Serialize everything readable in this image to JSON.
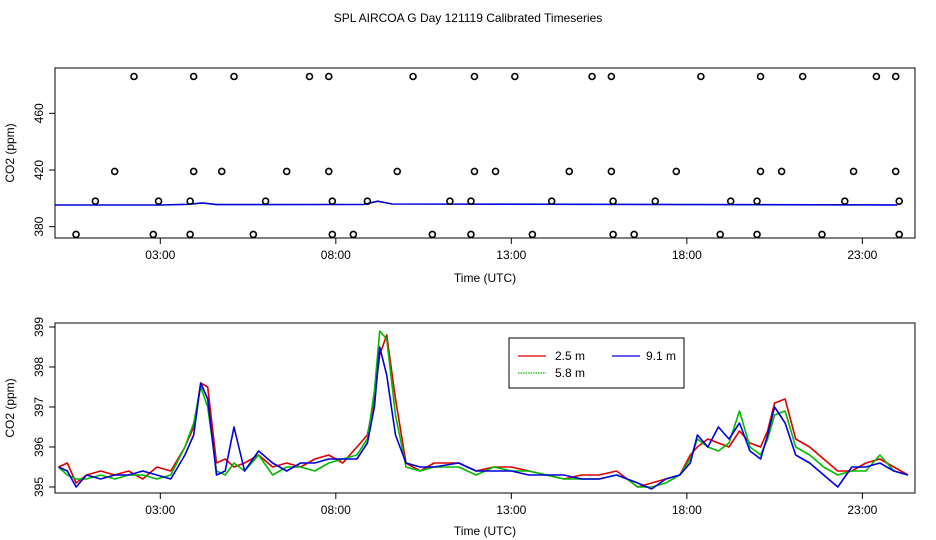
{
  "title": "SPL AIRCOA G  Day 121119  Calibrated Timeseries",
  "colors": {
    "s25": "#dd0000",
    "s58": "#00bb00",
    "s91": "#0000dd",
    "flag": "#000000"
  },
  "chart_data": [
    {
      "type": "line",
      "panel": "top",
      "xlabel": "Time (UTC)",
      "ylabel": "CO2 (ppm)",
      "xlim": [
        0,
        24.5
      ],
      "ylim": [
        372,
        492
      ],
      "x_ticks": [
        3,
        8,
        13,
        18,
        23
      ],
      "x_tick_labels": [
        "03:00",
        "08:00",
        "13:00",
        "18:00",
        "23:00"
      ],
      "y_ticks": [
        380,
        420,
        460
      ],
      "y_tick_labels": [
        "380",
        "420",
        "460"
      ],
      "series": [
        {
          "color_key": "s91",
          "x": [
            0,
            3,
            3.8,
            4.2,
            4.6,
            8.8,
            9.2,
            9.6,
            24
          ],
          "y": [
            395.3,
            395.3,
            395.8,
            396.8,
            395.6,
            395.7,
            398,
            396,
            395.3
          ]
        }
      ],
      "flag_points": [
        {
          "x": 2.25,
          "y": 486
        },
        {
          "x": 3.95,
          "y": 486
        },
        {
          "x": 5.1,
          "y": 486
        },
        {
          "x": 7.25,
          "y": 486
        },
        {
          "x": 7.8,
          "y": 486
        },
        {
          "x": 10.2,
          "y": 486
        },
        {
          "x": 11.95,
          "y": 486
        },
        {
          "x": 13.1,
          "y": 486
        },
        {
          "x": 15.3,
          "y": 486
        },
        {
          "x": 15.85,
          "y": 486
        },
        {
          "x": 18.4,
          "y": 486
        },
        {
          "x": 20.1,
          "y": 486
        },
        {
          "x": 21.3,
          "y": 486
        },
        {
          "x": 23.4,
          "y": 486
        },
        {
          "x": 23.95,
          "y": 486
        },
        {
          "x": 1.7,
          "y": 419
        },
        {
          "x": 3.95,
          "y": 419
        },
        {
          "x": 4.75,
          "y": 419
        },
        {
          "x": 6.6,
          "y": 419
        },
        {
          "x": 7.8,
          "y": 419
        },
        {
          "x": 9.75,
          "y": 419
        },
        {
          "x": 11.95,
          "y": 419
        },
        {
          "x": 12.55,
          "y": 419
        },
        {
          "x": 14.65,
          "y": 419
        },
        {
          "x": 15.85,
          "y": 419
        },
        {
          "x": 17.7,
          "y": 419
        },
        {
          "x": 20.1,
          "y": 419
        },
        {
          "x": 20.7,
          "y": 419
        },
        {
          "x": 22.75,
          "y": 419
        },
        {
          "x": 23.95,
          "y": 419
        },
        {
          "x": 1.15,
          "y": 398
        },
        {
          "x": 2.95,
          "y": 398
        },
        {
          "x": 3.85,
          "y": 398
        },
        {
          "x": 6.0,
          "y": 398
        },
        {
          "x": 7.9,
          "y": 398
        },
        {
          "x": 8.9,
          "y": 398
        },
        {
          "x": 11.25,
          "y": 398
        },
        {
          "x": 11.85,
          "y": 398
        },
        {
          "x": 14.15,
          "y": 398
        },
        {
          "x": 15.9,
          "y": 398
        },
        {
          "x": 17.1,
          "y": 398
        },
        {
          "x": 19.25,
          "y": 398
        },
        {
          "x": 20.0,
          "y": 398
        },
        {
          "x": 22.5,
          "y": 398
        },
        {
          "x": 24.05,
          "y": 398
        },
        {
          "x": 0.6,
          "y": 374.5
        },
        {
          "x": 2.8,
          "y": 374.5
        },
        {
          "x": 3.85,
          "y": 374.5
        },
        {
          "x": 5.65,
          "y": 374.5
        },
        {
          "x": 7.9,
          "y": 374.5
        },
        {
          "x": 8.5,
          "y": 374.5
        },
        {
          "x": 10.75,
          "y": 374.5
        },
        {
          "x": 11.85,
          "y": 374.5
        },
        {
          "x": 13.6,
          "y": 374.5
        },
        {
          "x": 15.9,
          "y": 374.5
        },
        {
          "x": 16.5,
          "y": 374.5
        },
        {
          "x": 18.95,
          "y": 374.5
        },
        {
          "x": 20.0,
          "y": 374.5
        },
        {
          "x": 21.85,
          "y": 374.5
        },
        {
          "x": 24.05,
          "y": 374.5
        }
      ]
    },
    {
      "type": "line",
      "panel": "bottom",
      "xlabel": "Time (UTC)",
      "ylabel": "CO2 (ppm)",
      "xlim": [
        0,
        24.5
      ],
      "ylim": [
        394.85,
        399.1
      ],
      "x_ticks": [
        3,
        8,
        13,
        18,
        23
      ],
      "x_tick_labels": [
        "03:00",
        "08:00",
        "13:00",
        "18:00",
        "23:00"
      ],
      "y_ticks": [
        395,
        396,
        397,
        398,
        399
      ],
      "y_tick_labels": [
        "395",
        "396",
        "397",
        "398",
        "399"
      ],
      "legend": {
        "position": "top-center"
      },
      "series": [
        {
          "name": "2.5 m",
          "color_key": "s25",
          "x": [
            0.1,
            0.35,
            0.6,
            0.9,
            1.3,
            1.7,
            2.1,
            2.5,
            2.9,
            3.3,
            3.7,
            3.95,
            4.15,
            4.35,
            4.6,
            4.85,
            5.1,
            5.4,
            5.8,
            6.2,
            6.6,
            7.0,
            7.4,
            7.8,
            8.2,
            8.6,
            8.9,
            9.1,
            9.25,
            9.45,
            9.7,
            10.0,
            10.4,
            10.8,
            11.5,
            12.0,
            12.5,
            13.0,
            13.5,
            14.0,
            14.5,
            15.0,
            15.5,
            16.0,
            16.3,
            16.6,
            17.0,
            17.4,
            17.8,
            18.1,
            18.3,
            18.6,
            18.9,
            19.2,
            19.5,
            19.8,
            20.1,
            20.3,
            20.5,
            20.8,
            21.1,
            21.5,
            21.9,
            22.3,
            22.7,
            23.1,
            23.5,
            23.9,
            24.3
          ],
          "y": [
            395.5,
            395.6,
            395.1,
            395.3,
            395.4,
            395.3,
            395.4,
            395.2,
            395.5,
            395.4,
            396.0,
            396.5,
            397.6,
            397.5,
            395.6,
            395.7,
            395.5,
            395.6,
            395.8,
            395.5,
            395.6,
            395.5,
            395.7,
            395.8,
            395.6,
            396.0,
            396.3,
            397.2,
            398.3,
            398.8,
            397.2,
            395.6,
            395.4,
            395.6,
            395.6,
            395.4,
            395.5,
            395.5,
            395.4,
            395.3,
            395.2,
            395.3,
            395.3,
            395.4,
            395.2,
            395.0,
            395.1,
            395.2,
            395.3,
            395.8,
            396.0,
            396.2,
            396.1,
            396.0,
            396.4,
            396.1,
            396.0,
            396.4,
            397.1,
            397.2,
            396.2,
            396.0,
            395.7,
            395.4,
            395.4,
            395.6,
            395.7,
            395.5,
            395.3
          ]
        },
        {
          "name": "5.8 m",
          "color_key": "s58",
          "x": [
            0.1,
            0.35,
            0.6,
            0.9,
            1.3,
            1.7,
            2.1,
            2.5,
            2.9,
            3.3,
            3.7,
            3.95,
            4.15,
            4.35,
            4.6,
            4.85,
            5.1,
            5.4,
            5.8,
            6.2,
            6.6,
            7.0,
            7.4,
            7.8,
            8.2,
            8.6,
            8.9,
            9.1,
            9.25,
            9.45,
            9.7,
            10.0,
            10.4,
            10.8,
            11.5,
            12.0,
            12.5,
            13.0,
            13.5,
            14.0,
            14.5,
            15.0,
            15.5,
            16.0,
            16.3,
            16.6,
            17.0,
            17.4,
            17.8,
            18.1,
            18.3,
            18.6,
            18.9,
            19.2,
            19.5,
            19.8,
            20.1,
            20.3,
            20.5,
            20.8,
            21.1,
            21.5,
            21.9,
            22.3,
            22.7,
            23.1,
            23.5,
            23.9,
            24.3
          ],
          "y": [
            395.5,
            395.3,
            395.2,
            395.2,
            395.3,
            395.2,
            395.3,
            395.3,
            395.2,
            395.3,
            396.0,
            396.6,
            397.5,
            397.0,
            395.4,
            395.3,
            395.6,
            395.4,
            395.8,
            395.3,
            395.5,
            395.5,
            395.4,
            395.6,
            395.7,
            395.8,
            396.2,
            397.4,
            398.9,
            398.7,
            396.8,
            395.5,
            395.4,
            395.5,
            395.5,
            395.3,
            395.5,
            395.4,
            395.4,
            395.3,
            395.2,
            395.2,
            395.2,
            395.3,
            395.2,
            395.0,
            395.0,
            395.1,
            395.3,
            395.7,
            396.2,
            396.0,
            395.9,
            396.1,
            396.9,
            396.0,
            395.8,
            396.2,
            396.8,
            396.9,
            396.0,
            395.8,
            395.5,
            395.3,
            395.4,
            395.4,
            395.8,
            395.4,
            395.3
          ]
        },
        {
          "name": "9.1 m",
          "color_key": "s91",
          "x": [
            0.1,
            0.35,
            0.6,
            0.9,
            1.3,
            1.7,
            2.1,
            2.5,
            2.9,
            3.3,
            3.7,
            3.95,
            4.15,
            4.35,
            4.6,
            4.85,
            5.1,
            5.4,
            5.8,
            6.2,
            6.6,
            7.0,
            7.4,
            7.8,
            8.2,
            8.6,
            8.9,
            9.1,
            9.25,
            9.45,
            9.7,
            10.0,
            10.4,
            10.8,
            11.5,
            12.0,
            12.5,
            13.0,
            13.5,
            14.0,
            14.5,
            15.0,
            15.5,
            16.0,
            16.3,
            16.6,
            17.0,
            17.4,
            17.8,
            18.1,
            18.3,
            18.6,
            18.9,
            19.2,
            19.5,
            19.8,
            20.1,
            20.3,
            20.5,
            20.8,
            21.1,
            21.5,
            21.9,
            22.3,
            22.7,
            23.1,
            23.5,
            23.9,
            24.3
          ],
          "y": [
            395.5,
            395.4,
            395.0,
            395.3,
            395.2,
            395.3,
            395.3,
            395.4,
            395.3,
            395.2,
            395.8,
            396.3,
            397.6,
            397.2,
            395.3,
            395.4,
            396.5,
            395.4,
            395.9,
            395.6,
            395.4,
            395.6,
            395.6,
            395.7,
            395.7,
            395.7,
            396.1,
            397.0,
            398.5,
            397.8,
            396.3,
            395.6,
            395.5,
            395.5,
            395.6,
            395.4,
            395.4,
            395.4,
            395.3,
            395.3,
            395.3,
            395.2,
            395.2,
            395.3,
            395.2,
            395.1,
            394.95,
            395.2,
            395.3,
            395.6,
            396.3,
            396.0,
            396.5,
            396.2,
            396.6,
            395.9,
            395.7,
            396.3,
            397.0,
            396.6,
            395.8,
            395.6,
            395.3,
            395.0,
            395.5,
            395.5,
            395.6,
            395.4,
            395.3
          ]
        }
      ]
    }
  ]
}
